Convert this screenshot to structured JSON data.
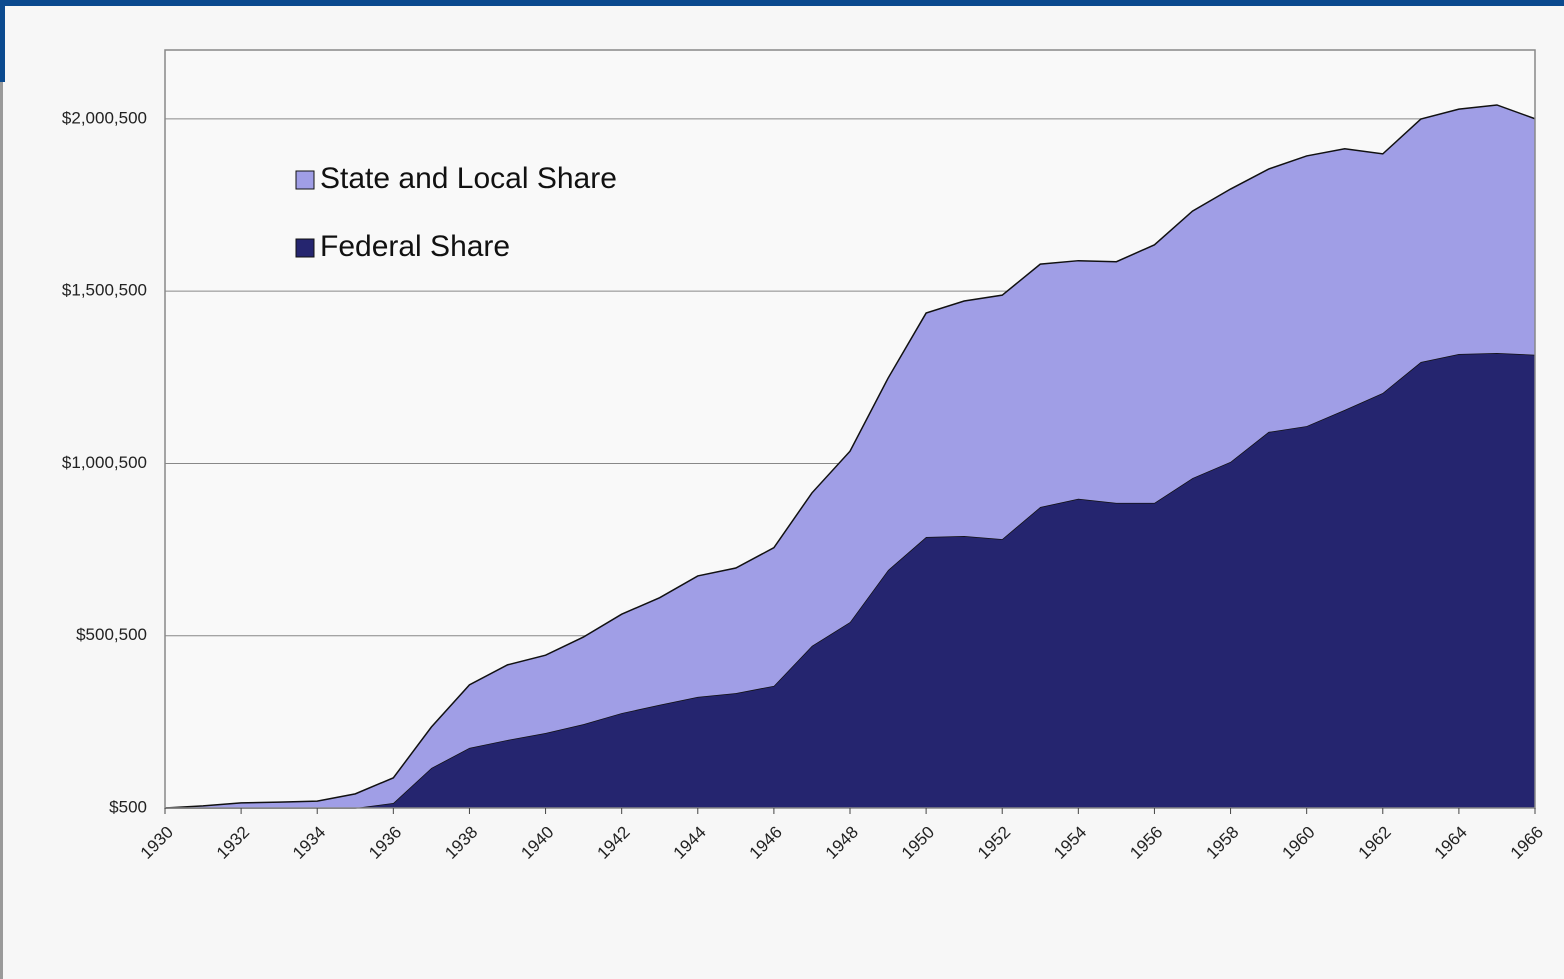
{
  "chart_data": {
    "type": "stacked-area",
    "x": [
      1930,
      1931,
      1932,
      1933,
      1934,
      1935,
      1936,
      1937,
      1938,
      1939,
      1940,
      1941,
      1942,
      1943,
      1944,
      1945,
      1946,
      1947,
      1948,
      1949,
      1950,
      1951,
      1952,
      1953,
      1954,
      1955,
      1956,
      1957,
      1958,
      1959,
      1960,
      1961,
      1962,
      1963,
      1964,
      1965,
      1966
    ],
    "xlim": [
      1930,
      1966
    ],
    "xticks": [
      1930,
      1932,
      1934,
      1936,
      1938,
      1940,
      1942,
      1944,
      1946,
      1948,
      1950,
      1952,
      1954,
      1956,
      1958,
      1960,
      1962,
      1964,
      1966
    ],
    "ylim": [
      500,
      2200500
    ],
    "yticks": [
      {
        "value": 500,
        "label": "$500"
      },
      {
        "value": 500500,
        "label": "$500,500"
      },
      {
        "value": 1000500,
        "label": "$1,000,500"
      },
      {
        "value": 1500500,
        "label": "$1,500,500"
      },
      {
        "value": 2000500,
        "label": "$2,000,500"
      }
    ],
    "grid": true,
    "legend": "upper left",
    "series": [
      {
        "name": "Federal Share",
        "color": "#25256f",
        "values": [
          500,
          500,
          500,
          500,
          500,
          500,
          15000,
          116600,
          175000,
          198000,
          218000,
          244000,
          276000,
          300000,
          323000,
          334000,
          355000,
          471000,
          540000,
          691000,
          787000,
          790000,
          781000,
          874000,
          898000,
          886000,
          886000,
          958000,
          1005000,
          1092000,
          1109000,
          1156000,
          1205000,
          1295000,
          1318000,
          1321000,
          1316000
        ]
      },
      {
        "name": "State and Local Share",
        "color": "#a09ee6",
        "values": [
          0,
          6000,
          15000,
          17000,
          20000,
          41000,
          73000,
          119000,
          183000,
          218000,
          226000,
          253000,
          287000,
          311000,
          351000,
          363000,
          401000,
          444000,
          496000,
          557000,
          650000,
          682000,
          708000,
          705000,
          691000,
          700000,
          749000,
          775000,
          792000,
          763000,
          784000,
          758000,
          694000,
          705000,
          711000,
          720000,
          685000
        ]
      }
    ]
  }
}
